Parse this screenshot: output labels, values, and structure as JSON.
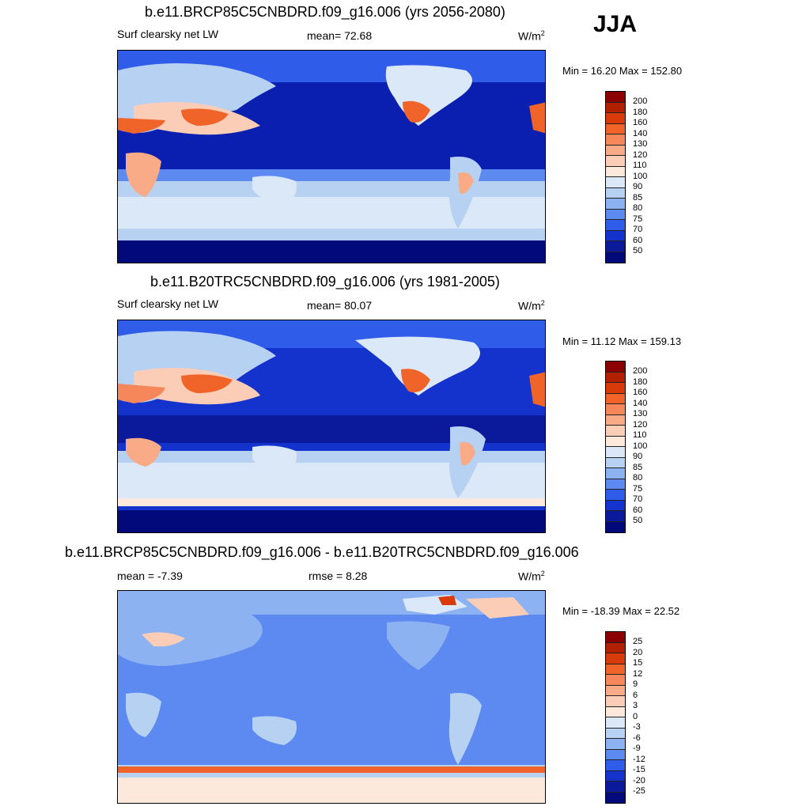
{
  "season": "JJA",
  "units": "W/m",
  "units_sup": "2",
  "panels": [
    {
      "title": "b.e11.BRCP85C5CNBDRD.f09_g16.006 (yrs 2056-2080)",
      "left_label": "Surf clearsky net LW",
      "center_label": "mean=  72.68",
      "minmax": "Min =  16.20 Max = 152.80"
    },
    {
      "title": "b.e11.B20TRC5CNBDRD.f09_g16.006 (yrs 1981-2005)",
      "left_label": "Surf clearsky net LW",
      "center_label": "mean=  80.07",
      "minmax": "Min =  11.12 Max = 159.13"
    },
    {
      "title": "b.e11.BRCP85C5CNBDRD.f09_g16.006 - b.e11.B20TRC5CNBDRD.f09_g16.006",
      "left_label": "mean =  -7.39",
      "center_label": "rmse =   8.28",
      "minmax": "Min = -18.39 Max =  22.52"
    }
  ],
  "colorbars": {
    "abs_levels": [
      "200",
      "180",
      "160",
      "140",
      "130",
      "120",
      "110",
      "100",
      "90",
      "85",
      "80",
      "75",
      "70",
      "60",
      "50"
    ],
    "diff_levels": [
      "25",
      "20",
      "15",
      "12",
      "9",
      "6",
      "3",
      "0",
      "-3",
      "-6",
      "-9",
      "-12",
      "-15",
      "-20",
      "-25"
    ],
    "colors": [
      "#8b0000",
      "#b22000",
      "#d93a0a",
      "#f0642a",
      "#f5875a",
      "#f9ab88",
      "#fccdb6",
      "#fde8dc",
      "#dbe8f7",
      "#b7d1f2",
      "#8db2f2",
      "#5d8af0",
      "#2f5ce8",
      "#1432cc",
      "#0a1a9a",
      "#02097a"
    ]
  },
  "chart_data": [
    {
      "type": "heatmap",
      "title": "b.e11.BRCP85C5CNBDRD.f09_g16.006 (yrs 2056-2080)",
      "variable": "Surf clearsky net LW",
      "units": "W/m2",
      "season": "JJA",
      "mean": 72.68,
      "min": 16.2,
      "max": 152.8,
      "contour_levels": [
        50,
        60,
        70,
        75,
        80,
        85,
        90,
        100,
        110,
        120,
        130,
        140,
        160,
        180,
        200
      ]
    },
    {
      "type": "heatmap",
      "title": "b.e11.B20TRC5CNBDRD.f09_g16.006 (yrs 1981-2005)",
      "variable": "Surf clearsky net LW",
      "units": "W/m2",
      "season": "JJA",
      "mean": 80.07,
      "min": 11.12,
      "max": 159.13,
      "contour_levels": [
        50,
        60,
        70,
        75,
        80,
        85,
        90,
        100,
        110,
        120,
        130,
        140,
        160,
        180,
        200
      ]
    },
    {
      "type": "heatmap",
      "title": "b.e11.BRCP85C5CNBDRD.f09_g16.006 - b.e11.B20TRC5CNBDRD.f09_g16.006",
      "units": "W/m2",
      "mean": -7.39,
      "rmse": 8.28,
      "min": -18.39,
      "max": 22.52,
      "contour_levels": [
        -25,
        -20,
        -15,
        -12,
        -9,
        -6,
        -3,
        0,
        3,
        6,
        9,
        12,
        15,
        20,
        25
      ]
    }
  ]
}
